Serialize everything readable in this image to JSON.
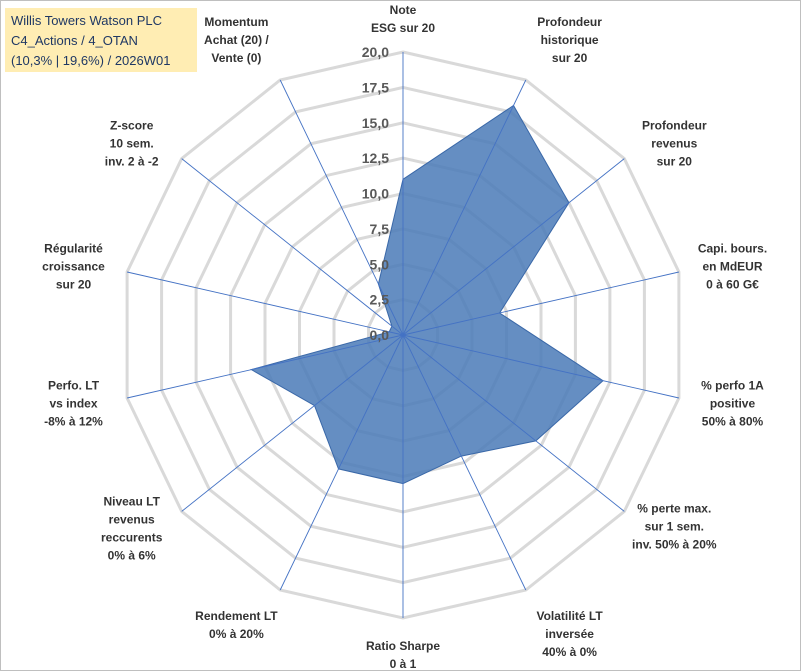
{
  "title": {
    "line1": "Willis Towers Watson PLC",
    "line2": "C4_Actions / 4_OTAN",
    "line3": "(10,3% | 19,6%) / 2026W01"
  },
  "chart_data": {
    "type": "radar",
    "rmin": 0,
    "rmax": 20,
    "tick_step": 2.5,
    "tick_labels": [
      "0,0",
      "2,5",
      "5,0",
      "7,5",
      "10,0",
      "12,5",
      "15,0",
      "17,5",
      "20,0"
    ],
    "axes": [
      {
        "lines": [
          "Note",
          "ESG sur 20"
        ],
        "value": 11
      },
      {
        "lines": [
          "Profondeur",
          "historique",
          "sur 20"
        ],
        "value": 18
      },
      {
        "lines": [
          "Profondeur",
          "revenus",
          "sur 20"
        ],
        "value": 15
      },
      {
        "lines": [
          "Capi. bours.",
          "en MdEUR",
          "0 à 60 G€"
        ],
        "value": 7
      },
      {
        "lines": [
          "% perfo 1A",
          "positive",
          "50% à 80%"
        ],
        "value": 14.5
      },
      {
        "lines": [
          "% perte max.",
          "sur 1 sem.",
          "inv. 50% à 20%"
        ],
        "value": 12
      },
      {
        "lines": [
          "Volatilité LT",
          "inversée",
          "40% à 0%"
        ],
        "value": 9.5
      },
      {
        "lines": [
          "Ratio Sharpe",
          "0 à 1"
        ],
        "value": 10.5
      },
      {
        "lines": [
          "Rendement LT",
          "0% à 20%"
        ],
        "value": 10.5
      },
      {
        "lines": [
          "Niveau LT",
          "revenus",
          "reccurents",
          "0% à 6%"
        ],
        "value": 8
      },
      {
        "lines": [
          "Perfo. LT",
          "vs index",
          "-8% à 12%"
        ],
        "value": 11
      },
      {
        "lines": [
          "Régularité",
          "croissance",
          "sur 20"
        ],
        "value": 1
      },
      {
        "lines": [
          "Z-score",
          "10 sem.",
          "inv. 2 à -2"
        ],
        "value": 1
      },
      {
        "lines": [
          "Momentum",
          "Achat (20) /",
          "Vente (0)"
        ],
        "value": 4
      }
    ],
    "colors": {
      "fill": "#4a7ab7",
      "stroke": "#3a68a8",
      "grid": "#d9d9d9",
      "spoke": "#4472c4",
      "title_bg": "#ffedb3",
      "title_text": "#1f3864"
    }
  }
}
